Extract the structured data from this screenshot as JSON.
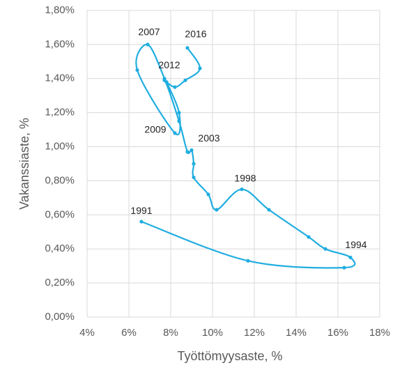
{
  "chart_data": {
    "type": "line",
    "xlabel": "Työttömyysaste, %",
    "ylabel": "Vakanssiaste, %",
    "x": [
      6.6,
      11.7,
      16.3,
      16.6,
      15.4,
      14.6,
      12.7,
      11.4,
      10.2,
      9.8,
      9.1,
      9.1,
      9.0,
      8.8,
      8.4,
      7.7,
      6.9,
      6.4,
      8.2,
      8.4,
      7.8,
      7.7,
      8.2,
      8.7,
      9.4,
      8.8
    ],
    "series": [
      {
        "color": "#1fade0",
        "values": [
          0.56,
          0.33,
          0.29,
          0.35,
          0.4,
          0.47,
          0.63,
          0.75,
          0.63,
          0.72,
          0.82,
          0.9,
          0.98,
          0.97,
          1.15,
          1.4,
          1.6,
          1.45,
          1.08,
          1.2,
          1.38,
          1.39,
          1.35,
          1.39,
          1.46,
          1.58
        ]
      }
    ],
    "point_labels": [
      "1991",
      null,
      null,
      "1994",
      null,
      null,
      null,
      "1998",
      null,
      null,
      null,
      null,
      "2003",
      null,
      null,
      null,
      "2007",
      null,
      "2009",
      null,
      null,
      "2012",
      null,
      null,
      null,
      "2016"
    ],
    "xlim": [
      4,
      18
    ],
    "xticks": [
      {
        "value": 4,
        "label": "4%"
      },
      {
        "value": 6,
        "label": "6%"
      },
      {
        "value": 8,
        "label": "8%"
      },
      {
        "value": 10,
        "label": "10%"
      },
      {
        "value": 12,
        "label": "12%"
      },
      {
        "value": 14,
        "label": "14%"
      },
      {
        "value": 16,
        "label": "16%"
      },
      {
        "value": 18,
        "label": "18%"
      }
    ],
    "ylim": [
      0,
      1.8
    ],
    "yticks": [
      {
        "value": 0,
        "label": "0,00%"
      },
      {
        "value": 0.2,
        "label": "0,20%"
      },
      {
        "value": 0.4,
        "label": "0,40%"
      },
      {
        "value": 0.6,
        "label": "0,60%"
      },
      {
        "value": 0.8,
        "label": "0,80%"
      },
      {
        "value": 1.0,
        "label": "1,00%"
      },
      {
        "value": 1.2,
        "label": "1,20%"
      },
      {
        "value": 1.4,
        "label": "1,40%"
      },
      {
        "value": 1.6,
        "label": "1,60%"
      },
      {
        "value": 1.8,
        "label": "1,80%"
      }
    ],
    "grid": true
  }
}
